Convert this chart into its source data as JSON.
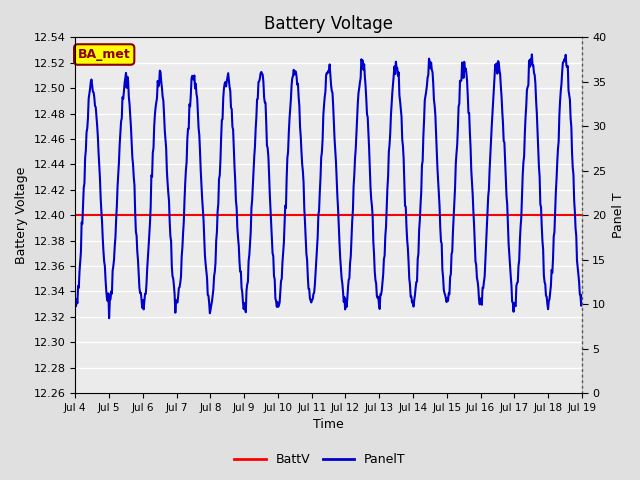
{
  "title": "Battery Voltage",
  "xlabel": "Time",
  "ylabel_left": "Battery Voltage",
  "ylabel_right": "Panel T",
  "ylim_left": [
    12.26,
    12.54
  ],
  "ylim_right": [
    0,
    40
  ],
  "yticks_left": [
    12.26,
    12.28,
    12.3,
    12.32,
    12.34,
    12.36,
    12.38,
    12.4,
    12.42,
    12.44,
    12.46,
    12.48,
    12.5,
    12.52,
    12.54
  ],
  "yticks_right": [
    0,
    5,
    10,
    15,
    20,
    25,
    30,
    35,
    40
  ],
  "x_tick_labels": [
    "Jul 4",
    "Jul 5",
    "Jul 6",
    "Jul 7",
    "Jul 8",
    "Jul 9",
    "Jul 10",
    "Jul 11",
    "Jul 12",
    "Jul 13",
    "Jul 14",
    "Jul 15",
    "Jul 16",
    "Jul 17",
    "Jul 18",
    "Jul 19"
  ],
  "batt_v_value": 12.4,
  "batt_color": "#ff0000",
  "panel_color": "#0000cc",
  "fig_bg_color": "#e0e0e0",
  "plot_bg_color": "#ebebeb",
  "annotation_text": "BA_met",
  "annotation_bg": "#ffff00",
  "annotation_border": "#8b0000",
  "panel_t_base": 10,
  "panel_t_amp_base": 25,
  "panel_t_amp_extra": 3,
  "panel_t_noise": 0.5,
  "n_points": 720
}
